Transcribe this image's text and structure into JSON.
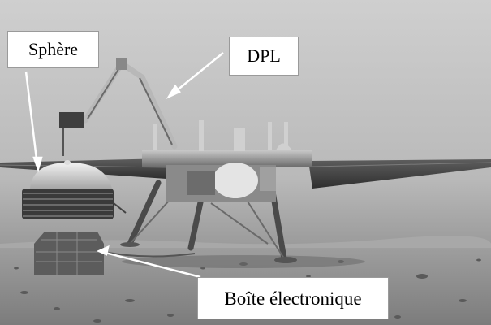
{
  "labels": {
    "sphere": "Sphère",
    "dpl": "DPL",
    "boite": "Boîte électronique"
  },
  "colors": {
    "sky_top": "#cfcfcf",
    "ground": "#8a8a8a",
    "arrow": "#ffffff",
    "label_bg": "#ffffff",
    "label_text": "#000000"
  }
}
